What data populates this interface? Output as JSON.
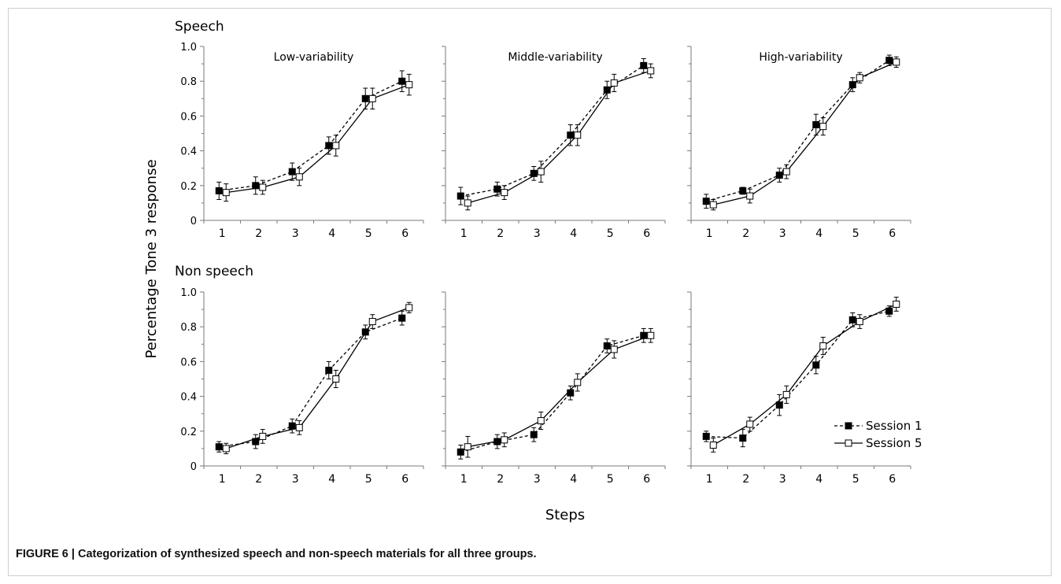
{
  "caption": "FIGURE 6 | Categorization of synthesized speech and non-speech materials for all three groups.",
  "ylabel": "Percentage Tone 3 response",
  "xlabel": "Steps",
  "row_labels": [
    "Speech",
    "Non speech"
  ],
  "legend": {
    "session1": "Session 1",
    "session5": "Session 5"
  },
  "colors": {
    "line": "#000000",
    "axis": "#7a7a7a",
    "filled_marker": "#000000",
    "open_marker": "#ffffff"
  },
  "chart_data": [
    {
      "type": "line",
      "row": "Speech",
      "title": "Low-variability",
      "x": [
        1,
        2,
        3,
        4,
        5,
        6
      ],
      "ylim": [
        0,
        1.0
      ],
      "yticks": [
        0,
        0.2,
        0.4,
        0.6,
        0.8,
        1.0
      ],
      "series": [
        {
          "name": "Session 1",
          "style": "dashed",
          "marker": "filled-square",
          "values": [
            0.17,
            0.2,
            0.28,
            0.43,
            0.7,
            0.8
          ],
          "errors": [
            0.05,
            0.05,
            0.05,
            0.05,
            0.06,
            0.06
          ]
        },
        {
          "name": "Session 5",
          "style": "solid",
          "marker": "open-square",
          "values": [
            0.16,
            0.19,
            0.25,
            0.43,
            0.7,
            0.78
          ],
          "errors": [
            0.05,
            0.04,
            0.05,
            0.06,
            0.06,
            0.06
          ]
        }
      ]
    },
    {
      "type": "line",
      "row": "Speech",
      "title": "Middle-variability",
      "x": [
        1,
        2,
        3,
        4,
        5,
        6
      ],
      "ylim": [
        0,
        1.0
      ],
      "yticks": [
        0,
        0.2,
        0.4,
        0.6,
        0.8,
        1.0
      ],
      "series": [
        {
          "name": "Session 1",
          "style": "dashed",
          "marker": "filled-square",
          "values": [
            0.14,
            0.18,
            0.27,
            0.49,
            0.75,
            0.89
          ],
          "errors": [
            0.05,
            0.04,
            0.04,
            0.06,
            0.05,
            0.04
          ]
        },
        {
          "name": "Session 5",
          "style": "solid",
          "marker": "open-square",
          "values": [
            0.1,
            0.16,
            0.28,
            0.49,
            0.79,
            0.86
          ],
          "errors": [
            0.04,
            0.04,
            0.06,
            0.06,
            0.05,
            0.04
          ]
        }
      ]
    },
    {
      "type": "line",
      "row": "Speech",
      "title": "High-variability",
      "x": [
        1,
        2,
        3,
        4,
        5,
        6
      ],
      "ylim": [
        0,
        1.0
      ],
      "yticks": [
        0,
        0.2,
        0.4,
        0.6,
        0.8,
        1.0
      ],
      "series": [
        {
          "name": "Session 1",
          "style": "dashed",
          "marker": "filled-square",
          "values": [
            0.11,
            0.17,
            0.26,
            0.55,
            0.78,
            0.92
          ],
          "errors": [
            0.04,
            0.02,
            0.04,
            0.06,
            0.04,
            0.03
          ]
        },
        {
          "name": "Session 5",
          "style": "solid",
          "marker": "open-square",
          "values": [
            0.09,
            0.14,
            0.28,
            0.54,
            0.82,
            0.91
          ],
          "errors": [
            0.03,
            0.04,
            0.04,
            0.05,
            0.03,
            0.03
          ]
        }
      ]
    },
    {
      "type": "line",
      "row": "Non speech",
      "title": "",
      "x": [
        1,
        2,
        3,
        4,
        5,
        6
      ],
      "ylim": [
        0,
        1.0
      ],
      "yticks": [
        0,
        0.2,
        0.4,
        0.6,
        0.8,
        1.0
      ],
      "series": [
        {
          "name": "Session 1",
          "style": "dashed",
          "marker": "filled-square",
          "values": [
            0.11,
            0.14,
            0.23,
            0.55,
            0.77,
            0.85
          ],
          "errors": [
            0.03,
            0.04,
            0.04,
            0.05,
            0.04,
            0.04
          ]
        },
        {
          "name": "Session 5",
          "style": "solid",
          "marker": "open-square",
          "values": [
            0.1,
            0.17,
            0.22,
            0.5,
            0.83,
            0.91
          ],
          "errors": [
            0.03,
            0.04,
            0.04,
            0.05,
            0.04,
            0.03
          ]
        }
      ]
    },
    {
      "type": "line",
      "row": "Non speech",
      "title": "",
      "x": [
        1,
        2,
        3,
        4,
        5,
        6
      ],
      "ylim": [
        0,
        1.0
      ],
      "yticks": [
        0,
        0.2,
        0.4,
        0.6,
        0.8,
        1.0
      ],
      "series": [
        {
          "name": "Session 1",
          "style": "dashed",
          "marker": "filled-square",
          "values": [
            0.08,
            0.14,
            0.18,
            0.42,
            0.69,
            0.75
          ],
          "errors": [
            0.04,
            0.04,
            0.04,
            0.04,
            0.04,
            0.04
          ]
        },
        {
          "name": "Session 5",
          "style": "solid",
          "marker": "open-square",
          "values": [
            0.11,
            0.15,
            0.26,
            0.48,
            0.67,
            0.75
          ],
          "errors": [
            0.06,
            0.04,
            0.05,
            0.05,
            0.05,
            0.04
          ]
        }
      ]
    },
    {
      "type": "line",
      "row": "Non speech",
      "title": "",
      "x": [
        1,
        2,
        3,
        4,
        5,
        6
      ],
      "ylim": [
        0,
        1.0
      ],
      "yticks": [
        0,
        0.2,
        0.4,
        0.6,
        0.8,
        1.0
      ],
      "series": [
        {
          "name": "Session 1",
          "style": "dashed",
          "marker": "filled-square",
          "values": [
            0.17,
            0.16,
            0.35,
            0.58,
            0.84,
            0.89
          ],
          "errors": [
            0.03,
            0.05,
            0.06,
            0.05,
            0.04,
            0.03
          ]
        },
        {
          "name": "Session 5",
          "style": "solid",
          "marker": "open-square",
          "values": [
            0.12,
            0.24,
            0.41,
            0.69,
            0.83,
            0.93
          ],
          "errors": [
            0.04,
            0.04,
            0.05,
            0.05,
            0.04,
            0.04
          ]
        }
      ]
    }
  ]
}
